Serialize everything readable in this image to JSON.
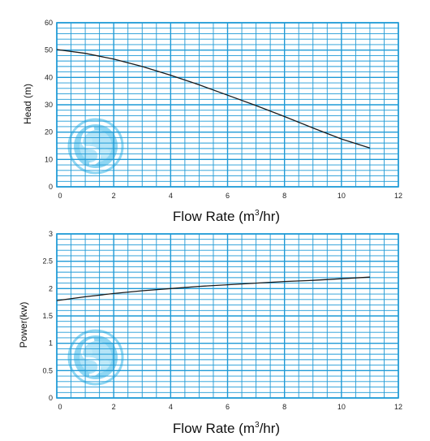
{
  "colors": {
    "grid": "#1f9ad6",
    "curve": "#1a1a1a",
    "logo": "#8fd6f2",
    "logo_light": "#d3f0fb"
  },
  "chart_data": [
    {
      "type": "line",
      "xlabel_main": "Flow Rate (m",
      "xlabel_sup": "3",
      "xlabel_tail": "/hr)",
      "ylabel": "Head (m)",
      "xlim": [
        0,
        12
      ],
      "ylim": [
        0,
        60
      ],
      "xticks": [
        "0",
        "2",
        "4",
        "6",
        "8",
        "10",
        "12"
      ],
      "yticks": [
        "0",
        "10",
        "20",
        "30",
        "40",
        "50",
        "60"
      ],
      "grid": true,
      "series": [
        {
          "x": [
            0,
            1,
            2,
            3,
            4,
            5,
            6,
            7,
            8,
            9,
            10,
            11
          ],
          "values": [
            50.2,
            48.8,
            46.7,
            44.0,
            40.8,
            37.3,
            33.5,
            29.7,
            25.7,
            21.5,
            17.5,
            14.2
          ]
        }
      ]
    },
    {
      "type": "line",
      "xlabel_main": "Flow Rate (m",
      "xlabel_sup": "3",
      "xlabel_tail": "/hr)",
      "ylabel": "Power(kw)",
      "xlim": [
        0,
        12
      ],
      "ylim": [
        0,
        3
      ],
      "xticks": [
        "0",
        "2",
        "4",
        "6",
        "8",
        "10",
        "12"
      ],
      "yticks": [
        "0",
        "0.5",
        "1",
        "1.5",
        "2",
        "2.5",
        "3"
      ],
      "grid": true,
      "series": [
        {
          "x": [
            0,
            1,
            2,
            3,
            4,
            5,
            6,
            7,
            8,
            9,
            10,
            11
          ],
          "values": [
            1.78,
            1.85,
            1.91,
            1.96,
            2.0,
            2.04,
            2.07,
            2.1,
            2.13,
            2.15,
            2.18,
            2.21
          ]
        }
      ]
    }
  ]
}
